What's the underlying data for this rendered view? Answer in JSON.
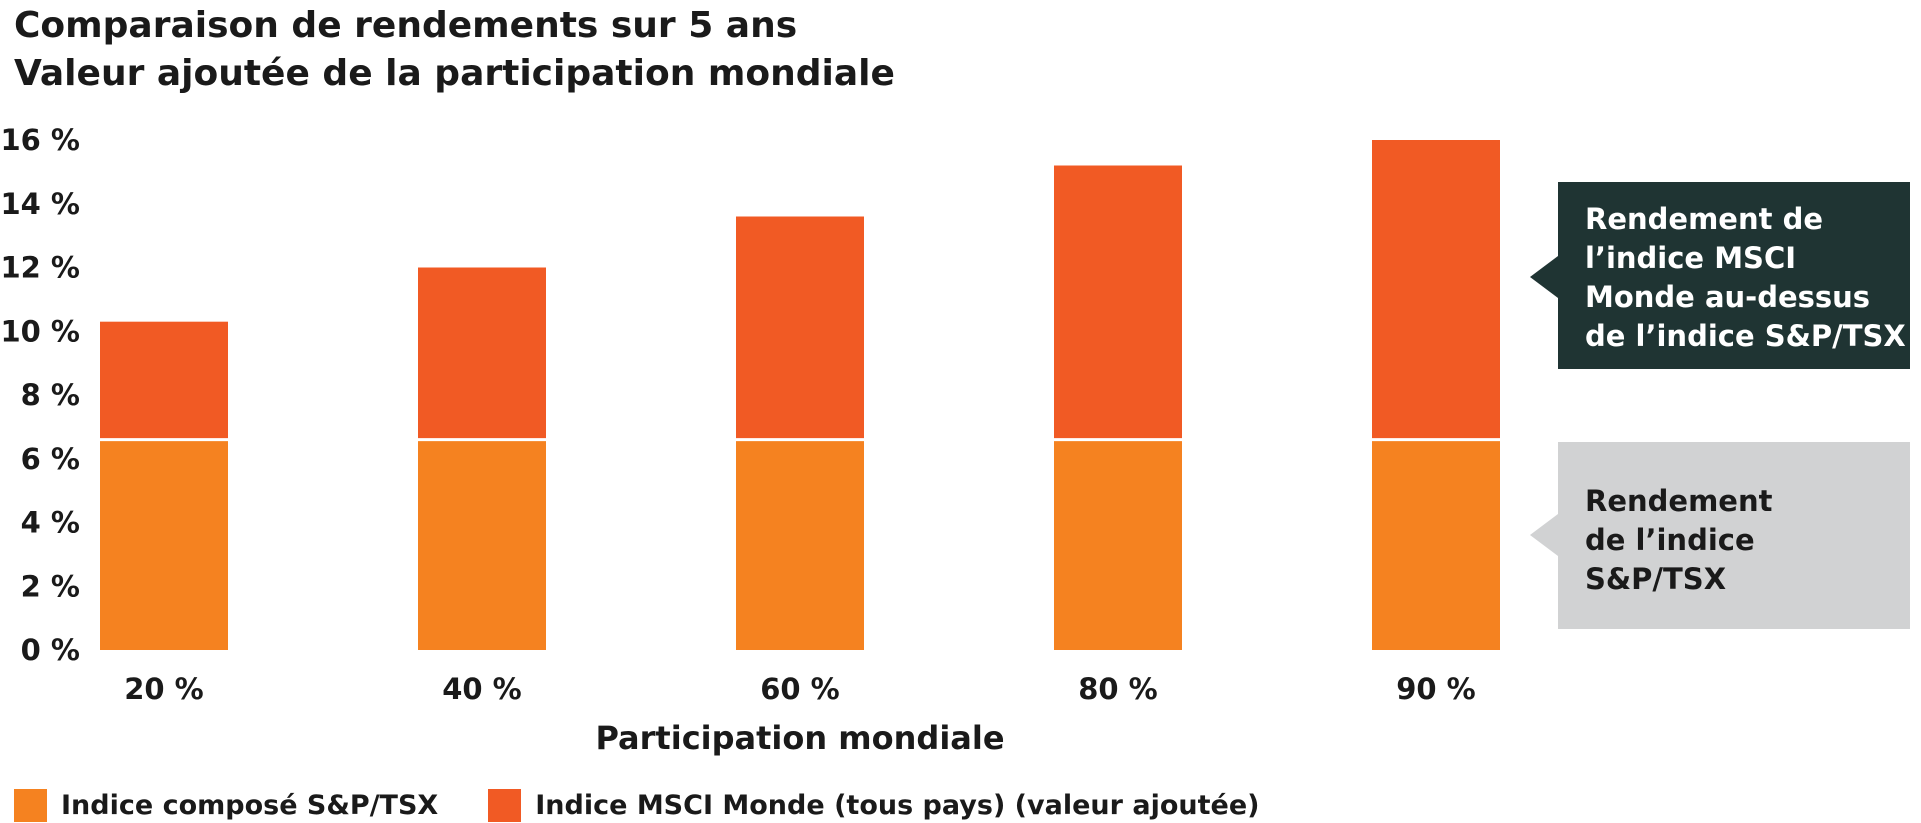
{
  "chart_data": {
    "type": "bar",
    "stacked": true,
    "title": "Comparaison de rendements sur 5 ans",
    "subtitle": "Valeur ajoutée de la participation mondiale",
    "xlabel": "Participation mondiale",
    "ylabel": "",
    "categories": [
      "20 %",
      "40 %",
      "60 %",
      "80 %",
      "90 %"
    ],
    "y_ticks": [
      "0 %",
      "2 %",
      "4 %",
      "6 %",
      "8 %",
      "10 %",
      "12 %",
      "14 %",
      "16 %"
    ],
    "ylim": [
      0,
      16
    ],
    "grid": false,
    "legend_position": "bottom-left",
    "series": [
      {
        "name": "Indice composé S&P/TSX",
        "color": "#f58220",
        "values": [
          6.6,
          6.6,
          6.6,
          6.6,
          6.6
        ]
      },
      {
        "name": "Indice MSCI Monde (tous pays) (valeur ajoutée)",
        "color": "#f15a24",
        "values": [
          3.7,
          5.4,
          7.0,
          8.6,
          9.4
        ]
      }
    ],
    "annotations": [
      {
        "lines": [
          "Rendement de",
          "l’indice MSCI",
          "Monde au-dessus",
          "de l’indice S&P/TSX"
        ],
        "background": "#1f3433",
        "text_color": "#ffffff"
      },
      {
        "lines": [
          "Rendement",
          "de l’indice",
          "S&P/TSX"
        ],
        "background": "#d1d2d3",
        "text_color": "#1a1a1a"
      }
    ]
  }
}
